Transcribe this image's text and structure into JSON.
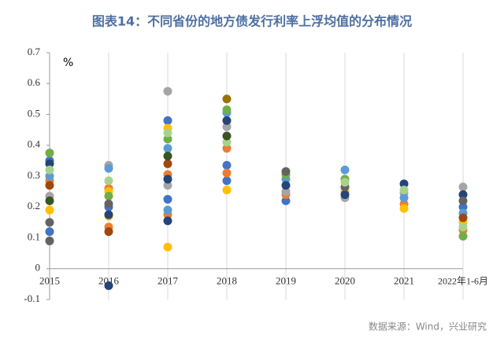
{
  "chart_data": {
    "type": "scatter",
    "title": "图表14：不同省份的地方债发行利率上浮均值的分布情况",
    "y_axis_label": "%",
    "source": "数据来源：Wind，兴业研究",
    "categories": [
      "2015",
      "2016",
      "2017",
      "2018",
      "2019",
      "2020",
      "2021",
      "2022年1-6月"
    ],
    "ylim": [
      -0.1,
      0.7
    ],
    "yticks": [
      -0.1,
      0,
      0.1,
      0.2,
      0.3,
      0.4,
      0.5,
      0.6,
      0.7
    ],
    "grid": true,
    "series": [
      {
        "color": "#4472c4",
        "values": [
          0.35,
          0.2,
          0.48,
          0.335,
          0.22,
          null,
          null,
          0.2
        ]
      },
      {
        "color": "#4472c4",
        "values": [
          0.12,
          null,
          0.225,
          0.285,
          null,
          null,
          null,
          null
        ]
      },
      {
        "color": "#ed7d31",
        "values": [
          0.285,
          0.26,
          0.305,
          0.39,
          0.24,
          null,
          0.21,
          0.125
        ]
      },
      {
        "color": "#ed7d31",
        "values": [
          null,
          0.135,
          0.175,
          0.31,
          null,
          null,
          null,
          null
        ]
      },
      {
        "color": "#a5a5a5",
        "values": [
          0.235,
          0.335,
          0.575,
          0.46,
          0.25,
          0.23,
          0.245,
          0.265
        ]
      },
      {
        "color": "#a5a5a5",
        "values": [
          null,
          null,
          0.27,
          null,
          null,
          null,
          null,
          null
        ]
      },
      {
        "color": "#ffc000",
        "values": [
          0.19,
          0.25,
          0.455,
          0.255,
          null,
          0.25,
          0.195,
          0.15
        ]
      },
      {
        "color": "#ffc000",
        "values": [
          null,
          0.17,
          0.07,
          null,
          null,
          null,
          null,
          null
        ]
      },
      {
        "color": "#5b9bd5",
        "values": [
          0.3,
          0.325,
          0.39,
          0.505,
          0.29,
          0.32,
          0.23,
          0.18
        ]
      },
      {
        "color": "#5b9bd5",
        "values": [
          null,
          null,
          0.19,
          null,
          null,
          null,
          null,
          null
        ]
      },
      {
        "color": "#70ad47",
        "values": [
          0.375,
          0.235,
          0.42,
          0.515,
          0.305,
          0.29,
          null,
          0.105
        ]
      },
      {
        "color": "#264478",
        "values": [
          0.34,
          0.175,
          0.29,
          0.48,
          0.27,
          0.24,
          0.275,
          0.24
        ]
      },
      {
        "color": "#264478",
        "values": [
          null,
          -0.055,
          0.155,
          null,
          null,
          null,
          null,
          null
        ]
      },
      {
        "color": "#9e480e",
        "values": [
          0.27,
          0.12,
          0.34,
          null,
          null,
          null,
          null,
          0.165
        ]
      },
      {
        "color": "#636363",
        "values": [
          0.15,
          0.21,
          null,
          null,
          0.315,
          0.265,
          null,
          0.22
        ]
      },
      {
        "color": "#636363",
        "values": [
          0.09,
          null,
          null,
          null,
          null,
          null,
          null,
          null
        ]
      },
      {
        "color": "#997300",
        "values": [
          null,
          null,
          null,
          0.55,
          null,
          null,
          null,
          null
        ]
      },
      {
        "color": "#a9d18e",
        "values": [
          0.32,
          0.285,
          0.44,
          0.41,
          null,
          0.28,
          0.255,
          0.135
        ]
      },
      {
        "color": "#375623",
        "values": [
          0.22,
          null,
          0.365,
          0.43,
          null,
          null,
          null,
          null
        ]
      }
    ]
  }
}
